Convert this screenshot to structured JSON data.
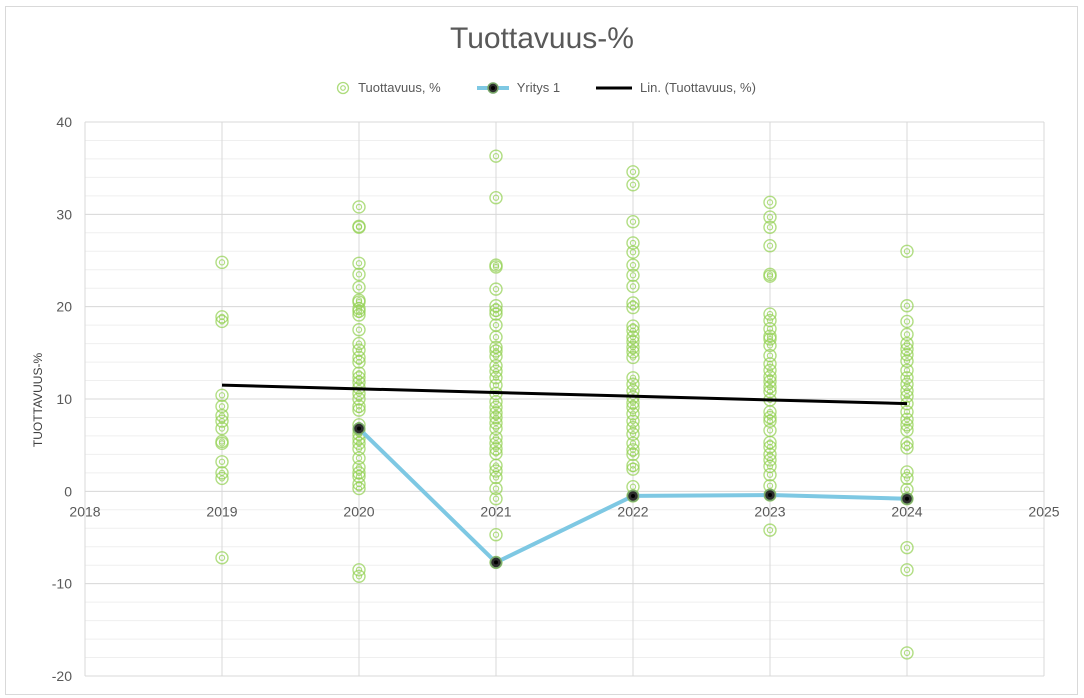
{
  "chart_data": {
    "type": "scatter",
    "title": "Tuottavuus-%",
    "xlabel": "",
    "ylabel": "TUOTTAVUUS-%",
    "xlim": [
      2018,
      2025
    ],
    "ylim": [
      -20,
      40
    ],
    "x_ticks": [
      2018,
      2019,
      2020,
      2021,
      2022,
      2023,
      2024,
      2025
    ],
    "y_ticks": [
      -20,
      -10,
      0,
      10,
      20,
      30,
      40
    ],
    "grid": {
      "major_y": 10,
      "minor_y": 2,
      "vertical_at_points": true
    },
    "legend_position": "top",
    "legend": [
      {
        "label": "Tuottavuus, %",
        "kind": "marker",
        "color": "#92d050"
      },
      {
        "label": "Yritys 1",
        "kind": "line-marker",
        "color": "#7ec8e3"
      },
      {
        "label": "Lin. (Tuottavuus, %)",
        "kind": "line",
        "color": "#000000"
      }
    ],
    "series": [
      {
        "name": "Tuottavuus, %",
        "type": "scatter",
        "color": "#92d050",
        "points": {
          "2019": [
            24.8,
            18.9,
            18.4,
            10.4,
            9.2,
            8.2,
            7.6,
            6.8,
            5.4,
            5.2,
            3.2,
            2.0,
            1.4,
            -7.2
          ],
          "2020": [
            30.8,
            28.7,
            28.6,
            24.7,
            23.5,
            22.1,
            20.7,
            20.5,
            19.8,
            19.5,
            19.1,
            17.5,
            16.0,
            15.3,
            14.5,
            14.0,
            12.8,
            12.3,
            11.8,
            11.2,
            10.6,
            10.0,
            9.2,
            8.8,
            7.2,
            6.7,
            6.2,
            5.7,
            5.2,
            4.6,
            3.6,
            2.6,
            2.0,
            1.6,
            0.8,
            0.3,
            -8.5,
            -9.2
          ],
          "2021": [
            36.3,
            31.8,
            24.5,
            24.3,
            21.9,
            20.1,
            19.6,
            19.2,
            18.0,
            16.7,
            15.6,
            15.2,
            14.6,
            13.6,
            13.0,
            12.3,
            11.5,
            10.6,
            9.7,
            9.1,
            8.5,
            8.0,
            7.4,
            6.8,
            5.8,
            5.2,
            4.6,
            4.1,
            2.8,
            2.2,
            1.5,
            0.3,
            -0.8,
            -4.7,
            -7.7
          ],
          "2022": [
            34.6,
            33.2,
            29.2,
            26.9,
            25.9,
            24.5,
            23.4,
            22.2,
            20.4,
            19.9,
            17.9,
            17.4,
            16.7,
            16.2,
            15.6,
            15.1,
            14.5,
            12.3,
            11.6,
            10.9,
            10.2,
            9.6,
            9.1,
            8.4,
            7.6,
            6.9,
            6.2,
            5.2,
            4.5,
            4.0,
            2.8,
            2.4,
            0.5,
            -0.5
          ],
          "2023": [
            31.3,
            29.7,
            28.6,
            26.6,
            23.5,
            23.3,
            19.2,
            18.5,
            17.6,
            16.8,
            16.5,
            15.8,
            14.7,
            13.8,
            13.1,
            12.4,
            11.9,
            11.3,
            10.8,
            9.9,
            8.6,
            8.0,
            7.6,
            6.6,
            5.3,
            4.8,
            4.0,
            3.4,
            2.7,
            1.8,
            0.6,
            -0.4,
            -4.2
          ],
          "2024": [
            26.0,
            20.1,
            18.4,
            17.0,
            16.0,
            15.4,
            14.8,
            14.1,
            13.1,
            12.3,
            11.6,
            10.9,
            10.3,
            9.5,
            8.6,
            7.8,
            7.2,
            6.6,
            5.2,
            4.7,
            2.1,
            1.4,
            0.2,
            -0.8,
            -6.1,
            -8.5,
            -17.5
          ]
        }
      },
      {
        "name": "Yritys 1",
        "type": "line",
        "color": "#7ec8e3",
        "x": [
          2020,
          2021,
          2022,
          2023,
          2024
        ],
        "y": [
          6.8,
          -7.7,
          -0.5,
          -0.4,
          -0.8
        ]
      },
      {
        "name": "Lin. (Tuottavuus, %)",
        "type": "trendline",
        "color": "#000000",
        "x": [
          2019,
          2024
        ],
        "y": [
          11.5,
          9.5
        ]
      }
    ]
  }
}
